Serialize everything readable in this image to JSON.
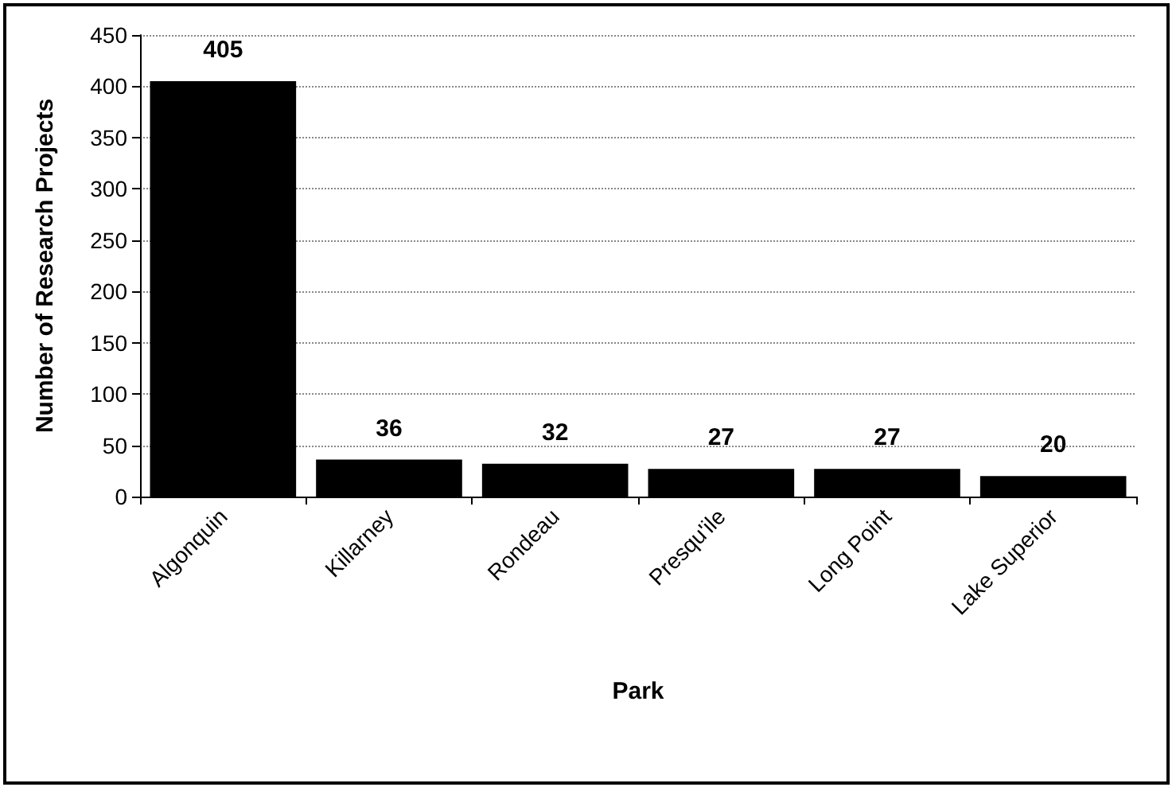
{
  "chart_data": {
    "type": "bar",
    "xlabel": "Park",
    "ylabel": "Number of Research Projects",
    "categories": [
      "Algonquin",
      "Killarney",
      "Rondeau",
      "Presqu'ile",
      "Long Point",
      "Lake Superior"
    ],
    "values": [
      405,
      36,
      32,
      27,
      27,
      20
    ],
    "color": "#000000",
    "ylim": [
      0,
      450
    ],
    "yticks": [
      0,
      50,
      100,
      150,
      200,
      250,
      300,
      350,
      400,
      450
    ],
    "grid": "y",
    "data_labels": true
  }
}
